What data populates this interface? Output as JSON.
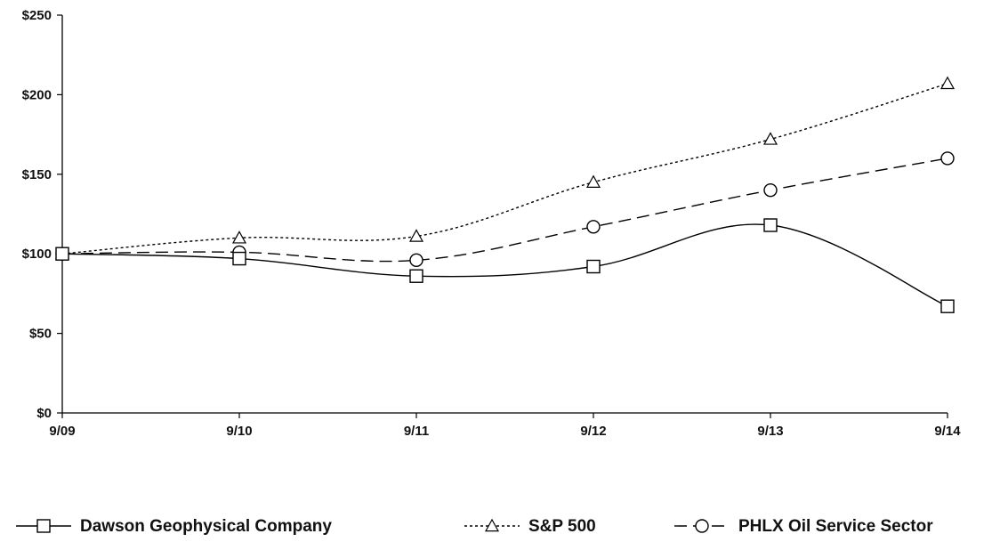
{
  "chart_data": {
    "type": "line",
    "title": "",
    "xlabel": "",
    "ylabel": "",
    "categories": [
      "9/09",
      "9/10",
      "9/11",
      "9/12",
      "9/13",
      "9/14"
    ],
    "y_ticks": [
      "$0",
      "$50",
      "$100",
      "$150",
      "$200",
      "$250"
    ],
    "ylim": [
      0,
      250
    ],
    "grid": false,
    "legend_position": "bottom",
    "series": [
      {
        "name": "Dawson Geophysical Company",
        "values": [
          100,
          97,
          86,
          92,
          118,
          67
        ],
        "line_style": "solid",
        "marker": "square",
        "color": "#000000"
      },
      {
        "name": "S&P 500",
        "values": [
          100,
          110,
          111,
          145,
          172,
          207
        ],
        "line_style": "dotted",
        "marker": "triangle",
        "color": "#000000"
      },
      {
        "name": "PHLX Oil Service Sector",
        "values": [
          100,
          101,
          96,
          117,
          140,
          160
        ],
        "line_style": "dashed",
        "marker": "circle",
        "color": "#000000"
      }
    ]
  }
}
